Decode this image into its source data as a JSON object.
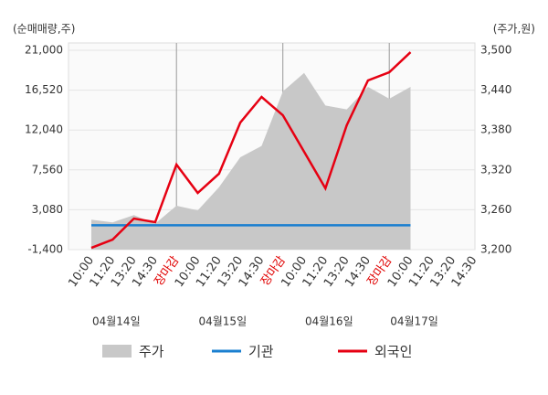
{
  "chart_data": {
    "type": "line",
    "y_label": "(순매매량,주)",
    "y2_label": "(주가,원)",
    "categories": [
      "10:00",
      "11:20",
      "13:20",
      "14:30",
      "장마감",
      "10:00",
      "11:20",
      "13:20",
      "14:30",
      "장마감",
      "10:00",
      "11:20",
      "13:20",
      "14:30",
      "장마감",
      "10:00",
      "11:20",
      "13:20",
      "14:30"
    ],
    "xtick_colors": [
      "#333",
      "#333",
      "#333",
      "#333",
      "#e00000",
      "#333",
      "#333",
      "#333",
      "#333",
      "#e00000",
      "#333",
      "#333",
      "#333",
      "#333",
      "#e00000",
      "#333",
      "#333",
      "#333",
      "#333"
    ],
    "date_labels": [
      "04월14일",
      "04월15일",
      "04월16일",
      "04월17일"
    ],
    "series": [
      {
        "name": "주가",
        "kind": "area",
        "color": "#c8c8c8",
        "axis": "y2",
        "values": [
          3245,
          3241,
          3252,
          3239,
          3266,
          3259,
          3294,
          3339,
          3356,
          3438,
          3466,
          3417,
          3411,
          3445,
          3427,
          3445,
          null,
          null,
          null
        ]
      },
      {
        "name": "기관",
        "kind": "line",
        "color": "#1a7fd0",
        "values": [
          1340,
          1340,
          1340,
          1340,
          1340,
          1340,
          1340,
          1340,
          1340,
          1340,
          1340,
          1340,
          1340,
          1340,
          1340,
          1340,
          null,
          null,
          null
        ]
      },
      {
        "name": "외국인",
        "kind": "line",
        "color": "#e60012",
        "values": [
          -1200,
          -270,
          2090,
          1680,
          8160,
          4970,
          7130,
          12880,
          15760,
          13700,
          9590,
          5480,
          12570,
          17610,
          18530,
          20790,
          null,
          null,
          null
        ]
      }
    ],
    "ylim": [
      -1400,
      21000
    ],
    "yticks": [
      {
        "value": -1400,
        "label": "-1,400"
      },
      {
        "value": 3080,
        "label": "3,080"
      },
      {
        "value": 7560,
        "label": "7,560"
      },
      {
        "value": 12040,
        "label": "12,040"
      },
      {
        "value": 16520,
        "label": "16,520"
      },
      {
        "value": 21000,
        "label": "21,000"
      }
    ],
    "y2lim": [
      3200,
      3500
    ],
    "y2ticks": [
      {
        "value": 3200,
        "label": "3,200"
      },
      {
        "value": 3260,
        "label": "3,260"
      },
      {
        "value": 3320,
        "label": "3,320"
      },
      {
        "value": 3380,
        "label": "3,380"
      },
      {
        "value": 3440,
        "label": "3,440"
      },
      {
        "value": 3500,
        "label": "3,500"
      }
    ],
    "grid": true
  }
}
